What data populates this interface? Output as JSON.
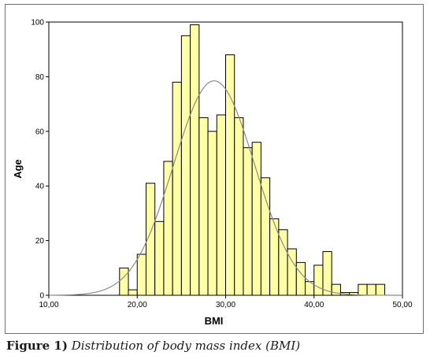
{
  "caption": {
    "label": "Figure 1)",
    "text": "Distribution of body mass index (BMI)"
  },
  "chart_data": {
    "type": "histogram",
    "title": "",
    "xlabel": "BMI",
    "ylabel": "Age",
    "xlim": [
      10,
      50
    ],
    "ylim": [
      0,
      100
    ],
    "x_ticks": [
      "10,00",
      "20,00",
      "30,00",
      "40,00",
      "50,00"
    ],
    "y_ticks": [
      "0",
      "20",
      "40",
      "60",
      "80",
      "100"
    ],
    "bar_color": "#ffffa8",
    "bar_edge_color": "#000000",
    "curve_color": "#8a8a8a",
    "grid": false,
    "bin_width": 1,
    "bins": [
      {
        "x0": 18,
        "count": 10
      },
      {
        "x0": 19,
        "count": 2
      },
      {
        "x0": 20,
        "count": 15
      },
      {
        "x0": 21,
        "count": 41
      },
      {
        "x0": 22,
        "count": 27
      },
      {
        "x0": 23,
        "count": 49
      },
      {
        "x0": 24,
        "count": 78
      },
      {
        "x0": 25,
        "count": 95
      },
      {
        "x0": 26,
        "count": 99
      },
      {
        "x0": 27,
        "count": 65
      },
      {
        "x0": 28,
        "count": 60
      },
      {
        "x0": 29,
        "count": 66
      },
      {
        "x0": 30,
        "count": 88
      },
      {
        "x0": 31,
        "count": 65
      },
      {
        "x0": 32,
        "count": 54
      },
      {
        "x0": 33,
        "count": 56
      },
      {
        "x0": 34,
        "count": 43
      },
      {
        "x0": 35,
        "count": 28
      },
      {
        "x0": 36,
        "count": 24
      },
      {
        "x0": 37,
        "count": 17
      },
      {
        "x0": 38,
        "count": 12
      },
      {
        "x0": 39,
        "count": 5
      },
      {
        "x0": 40,
        "count": 11
      },
      {
        "x0": 41,
        "count": 16
      },
      {
        "x0": 42,
        "count": 4
      },
      {
        "x0": 43,
        "count": 1
      },
      {
        "x0": 44,
        "count": 1
      },
      {
        "x0": 45,
        "count": 4
      },
      {
        "x0": 46,
        "count": 4
      },
      {
        "x0": 47,
        "count": 4
      }
    ],
    "normal_curve": {
      "mean": 28.7,
      "sd": 4.6,
      "peak": 78.5
    }
  }
}
